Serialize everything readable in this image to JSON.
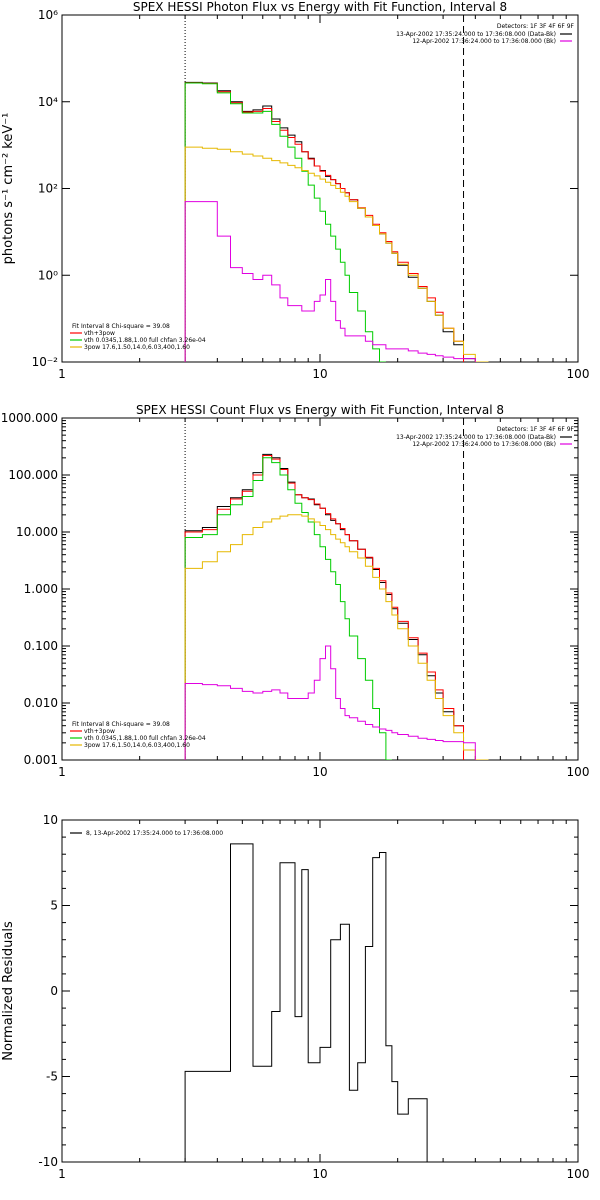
{
  "colors": {
    "total": "#000000",
    "vth_3pow": "#ff0000",
    "vth": "#00cc00",
    "3pow": "#e6b800",
    "background": "#e000e0",
    "axis": "#000000"
  },
  "chart_data": [
    {
      "type": "line",
      "title": "SPEX HESSI Photon Flux vs Energy with Fit Function, Interval 8",
      "xlabel": "",
      "ylabel": "photons s⁻¹ cm⁻² keV⁻¹",
      "xscale": "log",
      "yscale": "log",
      "xlim": [
        1,
        100
      ],
      "ylim": [
        0.01,
        1000000
      ],
      "x_ticks": [
        "1",
        "10",
        "100"
      ],
      "y_ticks": [
        "10⁻²",
        "10⁰",
        "10²",
        "10⁴",
        "10⁶"
      ],
      "x_edges": [
        3,
        3.5,
        4,
        4.5,
        5,
        5.5,
        6,
        6.5,
        7,
        7.5,
        8,
        8.5,
        9,
        9.5,
        10,
        10.5,
        11,
        11.5,
        12,
        12.5,
        13,
        14,
        15,
        16,
        17,
        18,
        19,
        20,
        22,
        24,
        26,
        28,
        30,
        33,
        36,
        40,
        45,
        50
      ],
      "vlines": [
        3,
        36
      ],
      "detectors_text": "Detectors: 1F 3F 4F 6F 9F",
      "legend_right": [
        "13-Apr-2002 17:35:24.000 to 17:36:08.000 (Data-Bk)",
        "12-Apr-2002 17:36:24.000 to 17:36:08.000 (Bk)"
      ],
      "fit_text": "Fit Interval 8   Chi-square = 39.08",
      "legend_left": [
        "vth+3pow",
        "vth 0.0345,1.88,1.00  full chfan 3.26e-04",
        "3pow 17.6,1.50,14.0,6.03,400,1.60"
      ],
      "series": [
        {
          "name": "Data-Bk",
          "color_key": "total",
          "values": [
            28000,
            27000,
            18000,
            10000,
            6000,
            6500,
            8000,
            4000,
            2500,
            1700,
            1200,
            700,
            500,
            330,
            260,
            190,
            160,
            130,
            100,
            80,
            55,
            35,
            22,
            14,
            9,
            5.5,
            3.2,
            1.7,
            0.9,
            0.5,
            0.25,
            0.12,
            0.05,
            0.025,
            0.012,
            null,
            null
          ]
        },
        {
          "name": "vth+3pow",
          "color_key": "vth_3pow",
          "values": [
            27500,
            26500,
            17000,
            9500,
            5800,
            6000,
            7000,
            3500,
            2200,
            1500,
            1050,
            700,
            480,
            330,
            250,
            200,
            160,
            130,
            100,
            80,
            55,
            36,
            24,
            15,
            9.5,
            6,
            3.5,
            2,
            1.1,
            0.55,
            0.3,
            0.14,
            0.06,
            0.03,
            null,
            null,
            null
          ]
        },
        {
          "name": "vth",
          "color_key": "vth",
          "values": [
            27000,
            26000,
            16000,
            9000,
            5500,
            5500,
            6000,
            3000,
            1600,
            900,
            500,
            250,
            120,
            60,
            30,
            15,
            8,
            4,
            2,
            1,
            0.4,
            0.15,
            0.05,
            0.02,
            0.008,
            null,
            null,
            null,
            null,
            null,
            null,
            null,
            null,
            null,
            null,
            null,
            null
          ]
        },
        {
          "name": "3pow",
          "color_key": "3pow",
          "values": [
            900,
            850,
            800,
            700,
            620,
            560,
            500,
            440,
            390,
            340,
            300,
            260,
            225,
            195,
            165,
            140,
            118,
            100,
            82,
            66,
            50,
            35,
            22,
            14,
            9,
            5.5,
            3.2,
            1.8,
            1,
            0.5,
            0.25,
            0.12,
            0.06,
            0.03,
            0.015,
            0.008,
            null
          ]
        },
        {
          "name": "Bk",
          "color_key": "background",
          "values": [
            50,
            50,
            8,
            1.5,
            1.1,
            0.8,
            1,
            0.6,
            0.3,
            0.2,
            0.2,
            0.15,
            0.15,
            0.25,
            0.35,
            0.8,
            0.25,
            0.09,
            0.06,
            0.04,
            0.04,
            0.04,
            0.03,
            0.025,
            0.025,
            0.02,
            0.02,
            0.02,
            0.018,
            0.016,
            0.015,
            0.014,
            0.013,
            0.012,
            0.012,
            null,
            null
          ]
        }
      ]
    },
    {
      "type": "line",
      "title": "SPEX HESSI Count Flux vs Energy with Fit Function, Interval 8",
      "xlabel": "",
      "ylabel": "",
      "xscale": "log",
      "yscale": "log",
      "xlim": [
        1,
        100
      ],
      "ylim": [
        0.001,
        1000
      ],
      "x_ticks": [
        "1",
        "10",
        "100"
      ],
      "y_ticks": [
        "0.001",
        "0.010",
        "0.100",
        "1.000",
        "10.000",
        "100.000",
        "1000.000"
      ],
      "x_edges": [
        3,
        3.5,
        4,
        4.5,
        5,
        5.5,
        6,
        6.5,
        7,
        7.5,
        8,
        8.5,
        9,
        9.5,
        10,
        10.5,
        11,
        11.5,
        12,
        12.5,
        13,
        14,
        15,
        16,
        17,
        18,
        19,
        20,
        22,
        24,
        26,
        28,
        30,
        33,
        36,
        40,
        45,
        50
      ],
      "vlines": [
        3,
        36
      ],
      "detectors_text": "Detectors: 1F 3F 4F 6F 9F",
      "legend_right": [
        "13-Apr-2002 17:35:24.000 to 17:36:08.000 (Data-Bk)",
        "12-Apr-2002 17:36:24.000 to 17:36:08.000 (Bk)"
      ],
      "fit_text": "Fit Interval 8   Chi-square = 39.08",
      "legend_left": [
        "vth+3pow",
        "vth 0.0345,1.88,1.00  full chfan 3.26e-04",
        "3pow 17.6,1.50,14.0,6.03,400,1.60"
      ],
      "series": [
        {
          "name": "Data-Bk",
          "color_key": "total",
          "values": [
            10.5,
            12,
            28,
            40,
            55,
            110,
            230,
            200,
            130,
            75,
            45,
            40,
            38,
            30,
            26,
            20,
            16,
            14,
            11,
            9,
            7,
            5,
            3.5,
            2.2,
            1.3,
            0.8,
            0.45,
            0.25,
            0.13,
            0.07,
            0.03,
            0.015,
            0.007,
            0.004,
            0.001,
            null,
            null
          ]
        },
        {
          "name": "vth+3pow",
          "color_key": "vth_3pow",
          "values": [
            10,
            11,
            25,
            38,
            52,
            100,
            220,
            190,
            125,
            72,
            45,
            40,
            37,
            31,
            26,
            21,
            17,
            14,
            11.5,
            9,
            7,
            5,
            3.6,
            2.3,
            1.4,
            0.85,
            0.48,
            0.27,
            0.14,
            0.075,
            0.035,
            0.017,
            0.008,
            0.004,
            null,
            null,
            null
          ]
        },
        {
          "name": "vth",
          "color_key": "vth",
          "values": [
            8,
            9,
            20,
            30,
            42,
            80,
            200,
            165,
            100,
            55,
            32,
            22,
            15,
            9,
            5.5,
            3.3,
            2,
            1.2,
            0.6,
            0.3,
            0.15,
            0.06,
            0.025,
            0.008,
            0.003,
            0.001,
            null,
            null,
            null,
            null,
            null,
            null,
            null,
            null,
            null,
            null,
            null
          ]
        },
        {
          "name": "3pow",
          "color_key": "3pow",
          "values": [
            2.3,
            3,
            4.5,
            6,
            9,
            12,
            15,
            17,
            19,
            20,
            20,
            19,
            17,
            15,
            13,
            11,
            9,
            7.5,
            6.5,
            5.5,
            4.5,
            3.5,
            2.5,
            1.6,
            1,
            0.6,
            0.35,
            0.2,
            0.1,
            0.05,
            0.025,
            0.012,
            0.006,
            0.003,
            0.0015,
            0.001,
            null
          ]
        },
        {
          "name": "Bk",
          "color_key": "background",
          "values": [
            0.022,
            0.021,
            0.02,
            0.018,
            0.016,
            0.015,
            0.016,
            0.017,
            0.015,
            0.012,
            0.012,
            0.012,
            0.015,
            0.025,
            0.06,
            0.1,
            0.04,
            0.012,
            0.008,
            0.006,
            0.0055,
            0.0048,
            0.0042,
            0.0038,
            0.0035,
            0.0033,
            0.003,
            0.0028,
            0.0026,
            0.0024,
            0.0023,
            0.0022,
            0.0021,
            0.0021,
            0.002,
            null,
            null
          ]
        }
      ]
    },
    {
      "type": "line",
      "title": "",
      "xlabel": "",
      "ylabel": "Normalized Residuals",
      "xscale": "log",
      "yscale": "linear",
      "xlim": [
        1,
        100
      ],
      "ylim": [
        -10,
        10
      ],
      "x_ticks": [
        "1",
        "10",
        "100"
      ],
      "y_ticks": [
        "-10",
        "-5",
        "0",
        "5",
        "10"
      ],
      "legend_left": [
        "8, 13-Apr-2002 17:35:24.000 to 17:36:08.000"
      ],
      "x_edges": [
        3,
        3.5,
        4,
        4.5,
        5,
        5.5,
        6,
        6.5,
        7,
        7.5,
        8,
        8.5,
        9,
        9.5,
        10,
        10.5,
        11,
        11.5,
        12,
        12.5,
        13,
        14,
        15,
        16,
        17,
        18,
        19,
        20,
        22,
        24,
        26,
        28,
        30,
        33,
        36,
        40
      ],
      "series": [
        {
          "name": "residuals",
          "color_key": "total",
          "values": [
            -4.7,
            -4.7,
            -4.7,
            8.6,
            8.6,
            -4.4,
            -4.4,
            -1.2,
            7.5,
            7.5,
            -1.5,
            7.1,
            -4.2,
            -4.2,
            -3.3,
            -3.3,
            3.0,
            3.0,
            3.9,
            3.9,
            -5.8,
            -4.2,
            2.6,
            7.8,
            8.1,
            -3.2,
            -5.3,
            -7.2,
            -6.3,
            -6.3,
            null,
            null,
            null,
            null,
            null
          ]
        }
      ]
    }
  ]
}
